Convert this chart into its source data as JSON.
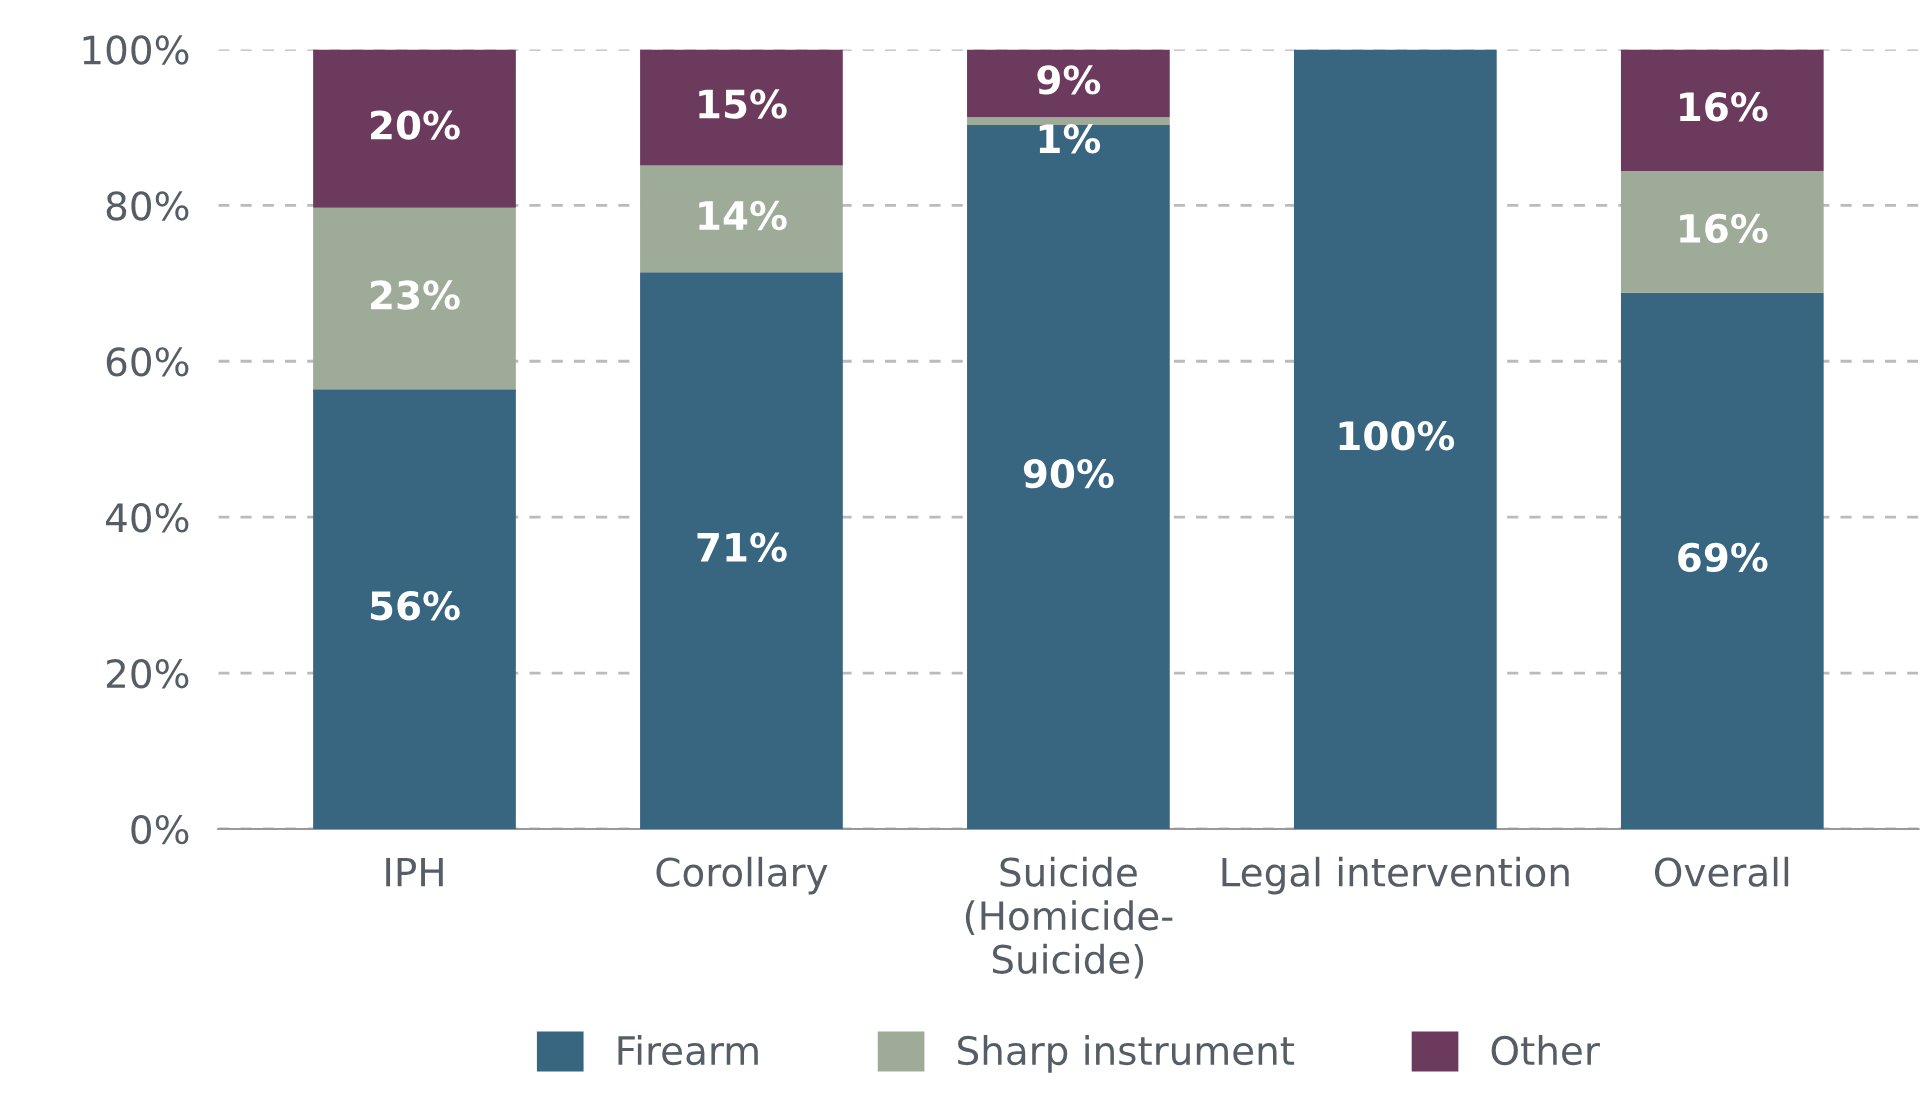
{
  "chart_data": {
    "type": "bar",
    "stacked": true,
    "categories": [
      "IPH",
      "Corollary",
      "Suicide\n(Homicide-\nSuicide)",
      "Legal intervention",
      "Overall"
    ],
    "series": [
      {
        "name": "Firearm",
        "color": "#38657f",
        "values": [
          56.4,
          71.4,
          90.3,
          100,
          68.8
        ],
        "value_labels": [
          "56%",
          "71%",
          "90%",
          "100%",
          "69%"
        ]
      },
      {
        "name": "Sharp instrument",
        "color": "#9dab98",
        "values": [
          23.3,
          13.7,
          1.0,
          null,
          15.6
        ],
        "value_labels": [
          "23%",
          "14%",
          "1%",
          null,
          "16%"
        ]
      },
      {
        "name": "Other",
        "color": "#6c3a5c",
        "values": [
          20.3,
          14.9,
          8.7,
          null,
          15.6
        ],
        "value_labels": [
          "20%",
          "15%",
          "9%",
          null,
          "16%"
        ]
      }
    ],
    "ylim": [
      0,
      100
    ],
    "yticks": [
      {
        "value": 0,
        "label": "0%"
      },
      {
        "value": 20,
        "label": "20%"
      },
      {
        "value": 40,
        "label": "40%"
      },
      {
        "value": 60,
        "label": "60%"
      },
      {
        "value": 80,
        "label": "80%"
      },
      {
        "value": 100,
        "label": "100%"
      }
    ],
    "grid": "y",
    "legend": "bottom"
  }
}
